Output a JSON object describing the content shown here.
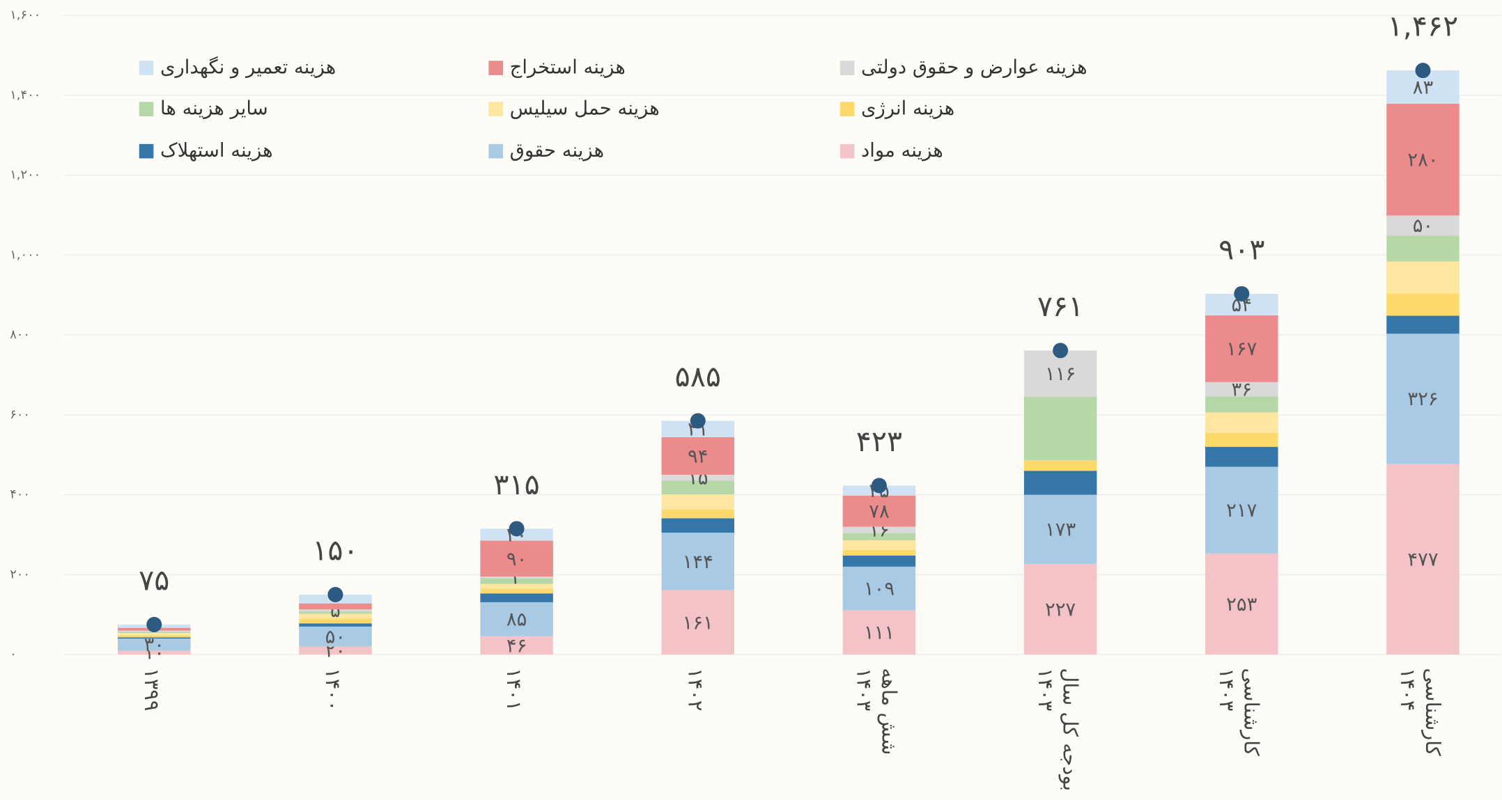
{
  "chart_data": {
    "type": "stacked_bar",
    "categories": [
      "۱۳۹۹",
      "۱۴۰۰",
      "۱۴۰۱",
      "۱۴۰۲",
      "شش ماهه ۱۴۰۳",
      "بودجه کل سال ۱۴۰۳",
      "کارشناسی ۱۴۰۳",
      "کارشناسی ۱۴۰۴"
    ],
    "series": [
      {
        "name": "هزینه مواد",
        "color": "#f4c3c7",
        "values": [
          10,
          20,
          46,
          161,
          111,
          227,
          253,
          477
        ],
        "value_labels": [
          "۱۰",
          "۲۰",
          "۴۶",
          "۱۶۱",
          "۱۱۱",
          "۲۲۷",
          "۲۵۳",
          "۴۷۷"
        ]
      },
      {
        "name": "هزینه حقوق",
        "color": "#a8cae5",
        "values": [
          30,
          50,
          85,
          144,
          109,
          173,
          217,
          326
        ],
        "value_labels": [
          "۳۰",
          "۵۰",
          "۸۵",
          "۱۴۴",
          "۱۰۹",
          "۱۷۳",
          "۲۱۷",
          "۳۲۶"
        ]
      },
      {
        "name": "هزینه استهلاک",
        "color": "#3577a9",
        "values": [
          3,
          8,
          22,
          36,
          28,
          60,
          50,
          45
        ]
      },
      {
        "name": "هزینه انرژی",
        "color": "#fdd96c",
        "values": [
          5,
          12,
          12,
          22,
          14,
          26,
          35,
          56
        ]
      },
      {
        "name": "هزینه حمل سیلیس",
        "color": "#fde6a0",
        "values": [
          6,
          12,
          12,
          38,
          24,
          0,
          51,
          80
        ]
      },
      {
        "name": "سایر هزینه ها",
        "color": "#b6d7a8",
        "values": [
          3,
          6,
          14,
          34,
          18,
          159,
          40,
          65
        ]
      },
      {
        "name": "هزینه عوارض و حقوق دولتی",
        "color": "#d9d9d9",
        "values": [
          3,
          5,
          4,
          15,
          16,
          116,
          36,
          50
        ],
        "value_labels": [
          null,
          "۵",
          "۴",
          "۱۵",
          "۱۶",
          "۱۱۶",
          "۳۶",
          "۵۰"
        ]
      },
      {
        "name": "هزینه  استخراج",
        "color": "#ec8b8b",
        "values": [
          7,
          15,
          90,
          94,
          78,
          0,
          167,
          280
        ],
        "value_labels": [
          null,
          null,
          "۹۰",
          "۹۴",
          "۷۸",
          null,
          "۱۶۷",
          "۲۸۰"
        ]
      },
      {
        "name": "هزینه تعمیر و نگهداری",
        "color": "#cfe2f3",
        "values": [
          8,
          22,
          30,
          41,
          25,
          0,
          54,
          83
        ],
        "value_labels": [
          null,
          null,
          "۳۰",
          "۴۱",
          "۲۵",
          null,
          "۵۴",
          "۸۳"
        ]
      }
    ],
    "totals": {
      "color": "#2c5a80",
      "values": [
        75,
        150,
        315,
        585,
        423,
        761,
        903,
        1462
      ],
      "value_labels": [
        "۷۵",
        "۱۵۰",
        "۳۱۵",
        "۵۸۵",
        "۴۲۳",
        "۷۶۱",
        "۹۰۳",
        "۱,۴۶۲"
      ]
    },
    "ylim": [
      0,
      1600
    ],
    "yticks": [
      {
        "value": 0,
        "label": "۰"
      },
      {
        "value": 200,
        "label": "۲۰۰"
      },
      {
        "value": 400,
        "label": "۴۰۰"
      },
      {
        "value": 600,
        "label": "۶۰۰"
      },
      {
        "value": 800,
        "label": "۸۰۰"
      },
      {
        "value": 1000,
        "label": "۱,۰۰۰"
      },
      {
        "value": 1200,
        "label": "۱,۲۰۰"
      },
      {
        "value": 1400,
        "label": "۱,۴۰۰"
      },
      {
        "value": 1600,
        "label": "۱,۶۰۰"
      }
    ],
    "grid": true,
    "legend": "top"
  }
}
